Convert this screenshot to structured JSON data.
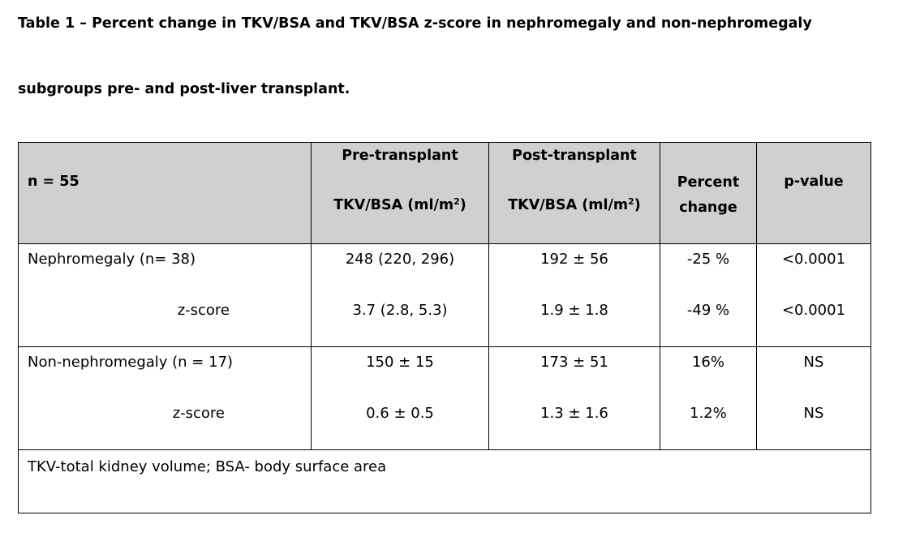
{
  "caption": {
    "line1": "Table 1 – Percent change in TKV/BSA and TKV/BSA z-score in nephromegaly and non-nephromegaly",
    "line2": "subgroups pre- and post-liver transplant."
  },
  "table": {
    "header": {
      "n": "n = 55",
      "pre_line1": "Pre-transplant",
      "pre_line2": "TKV/BSA (ml/m",
      "post_line1": "Post-transplant",
      "post_line2": "TKV/BSA (ml/m",
      "unit_sup": "2",
      "unit_close": ")",
      "percent_line1": "Percent",
      "percent_line2": "change",
      "pvalue": "p-value"
    },
    "groups": [
      {
        "label": "Nephromegaly  (n= 38)",
        "sub_label": "z-score",
        "pre": [
          "248 (220, 296)",
          "3.7 (2.8, 5.3)"
        ],
        "post": [
          "192 ± 56",
          "1.9 ± 1.8"
        ],
        "percent": [
          "-25 %",
          "-49 %"
        ],
        "pvalue": [
          "<0.0001",
          "<0.0001"
        ]
      },
      {
        "label": "Non-nephromegaly (n = 17)",
        "sub_label": "z-score",
        "pre": [
          "150 ± 15",
          "0.6 ± 0.5"
        ],
        "post": [
          "173 ± 51",
          "1.3 ± 1.6"
        ],
        "percent": [
          "16%",
          "1.2%"
        ],
        "pvalue": [
          "NS",
          "NS"
        ]
      }
    ],
    "footnote": "TKV-total kidney volume; BSA- body surface area"
  },
  "colors": {
    "header_bg": "#d0d0d0",
    "border": "#000000"
  }
}
